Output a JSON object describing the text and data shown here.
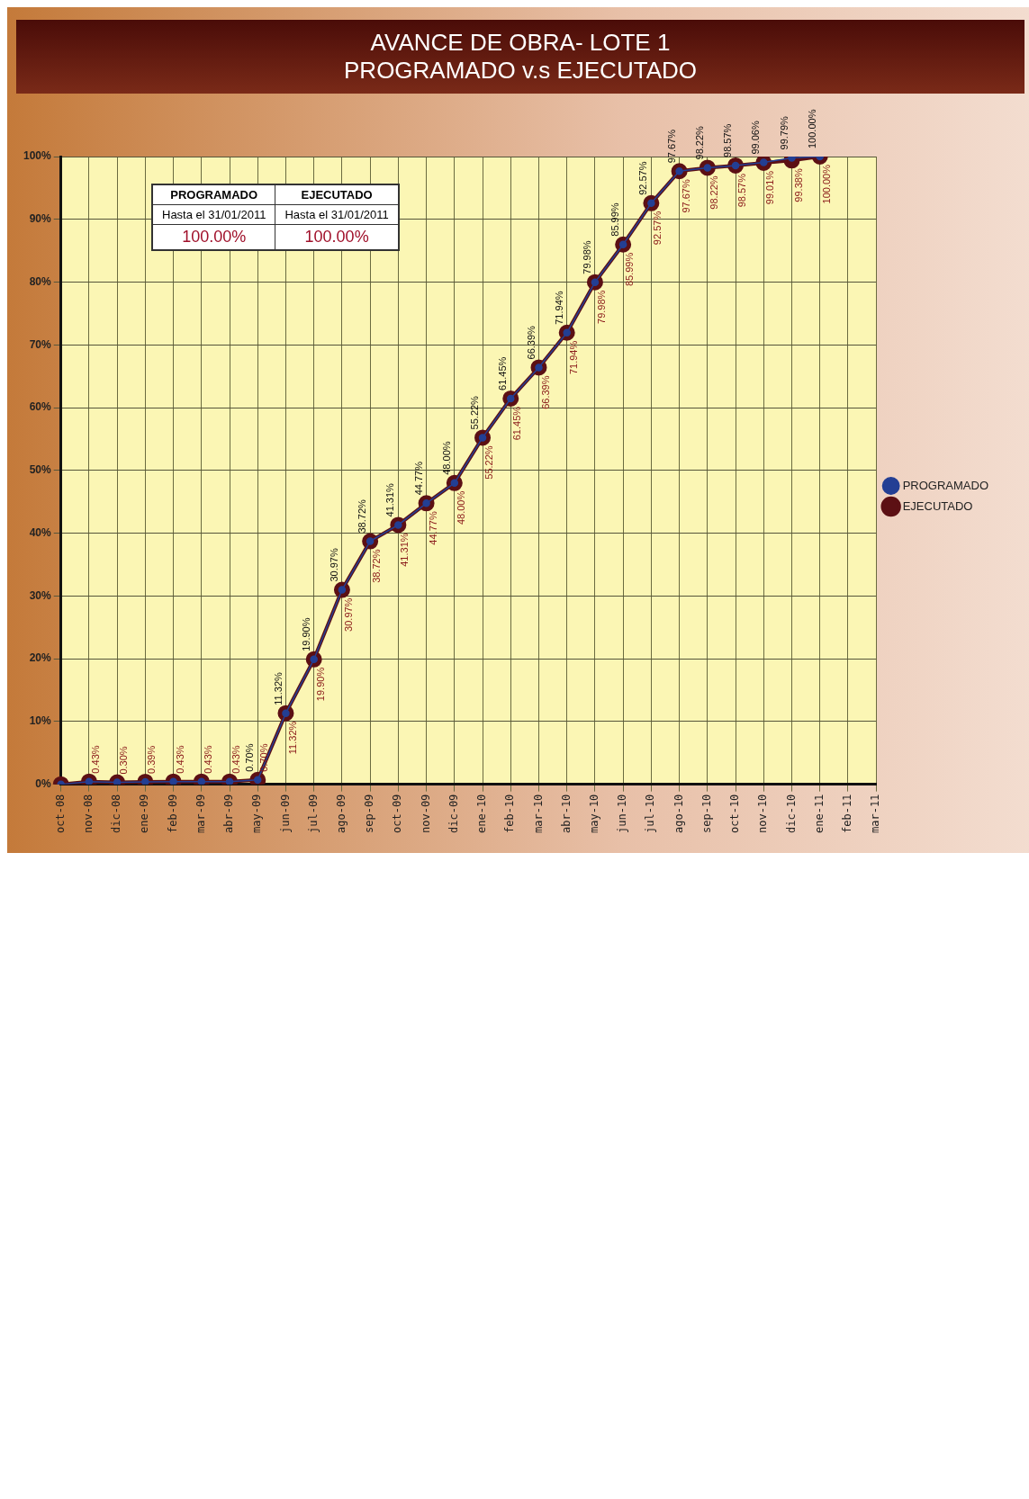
{
  "chart_data": {
    "type": "line",
    "title": "AVANCE DE OBRA- LOTE 1",
    "subtitle": "PROGRAMADO v.s EJECUTADO",
    "categories": [
      "oct-08",
      "nov-08",
      "dic-08",
      "ene-09",
      "feb-09",
      "mar-09",
      "abr-09",
      "may-09",
      "jun-09",
      "jul-09",
      "ago-09",
      "sep-09",
      "oct-09",
      "nov-09",
      "dic-09",
      "ene-10",
      "feb-10",
      "mar-10",
      "abr-10",
      "may-10",
      "jun-10",
      "jul-10",
      "ago-10",
      "sep-10",
      "oct-10",
      "nov-10",
      "dic-10",
      "ene-11",
      "feb-11",
      "mar-11"
    ],
    "series": [
      {
        "name": "PROGRAMADO",
        "color": "#233f94",
        "values": [
          0,
          0.43,
          0.3,
          0.39,
          0.43,
          0.43,
          0.43,
          0.7,
          11.32,
          19.9,
          30.97,
          38.72,
          41.31,
          44.77,
          48.0,
          55.22,
          61.45,
          66.39,
          71.94,
          79.98,
          85.99,
          92.57,
          97.67,
          98.22,
          98.57,
          99.06,
          99.79,
          100.0,
          null,
          null
        ],
        "value_labels": [
          null,
          null,
          null,
          null,
          null,
          null,
          null,
          "0.70%",
          "11.32%",
          "19.90%",
          "30.97%",
          "38.72%",
          "41.31%",
          "44.77%",
          "48.00%",
          "55.22%",
          "61.45%",
          "66.39%",
          "71.94%",
          "79.98%",
          "85.99%",
          "92.57%",
          "97.67%",
          "98.22%",
          "98.57%",
          "99.06%",
          "99.79%",
          "100.00%",
          null,
          null
        ]
      },
      {
        "name": "EJECUTADO",
        "color": "#5c1014",
        "values": [
          0,
          0.43,
          0.3,
          0.39,
          0.43,
          0.43,
          0.43,
          0.7,
          11.32,
          19.9,
          30.97,
          38.72,
          41.31,
          44.77,
          48.0,
          55.22,
          61.45,
          66.39,
          71.94,
          79.98,
          85.99,
          92.57,
          97.67,
          98.22,
          98.57,
          99.01,
          99.38,
          100.0,
          null,
          null
        ],
        "value_labels": [
          null,
          "0.43%",
          "0.30%",
          "0.39%",
          "0.43%",
          "0.43%",
          "0.43%",
          "0.70%",
          "11.32%",
          "19.90%",
          "30.97%",
          "38.72%",
          "41.31%",
          "44.77%",
          "48.00%",
          "55.22%",
          "61.45%",
          "66.39%",
          "71.94%",
          "79.98%",
          "85.99%",
          "92.57%",
          "97.67%",
          "98.22%",
          "98.57%",
          "99.01%",
          "99.38%",
          "100.00%",
          null,
          null
        ]
      }
    ],
    "ylim": [
      0,
      100
    ],
    "yticks": [
      {
        "value": 0,
        "label": "0%"
      },
      {
        "value": 10,
        "label": "10%"
      },
      {
        "value": 20,
        "label": "20%"
      },
      {
        "value": 30,
        "label": "30%"
      },
      {
        "value": 40,
        "label": "40%"
      },
      {
        "value": 50,
        "label": "50%"
      },
      {
        "value": 60,
        "label": "60%"
      },
      {
        "value": 70,
        "label": "70%"
      },
      {
        "value": 80,
        "label": "80%"
      },
      {
        "value": 90,
        "label": "90%"
      },
      {
        "value": 100,
        "label": "100%"
      }
    ],
    "grid": true,
    "legend": "right",
    "marker": "circle",
    "line_style": "solid",
    "annotations": [
      "PROGRAMADO",
      "Hasta el 31/01/2011",
      "100.00%",
      "EJECUTADO",
      "Hasta el 31/01/2011",
      "100.00%"
    ]
  }
}
